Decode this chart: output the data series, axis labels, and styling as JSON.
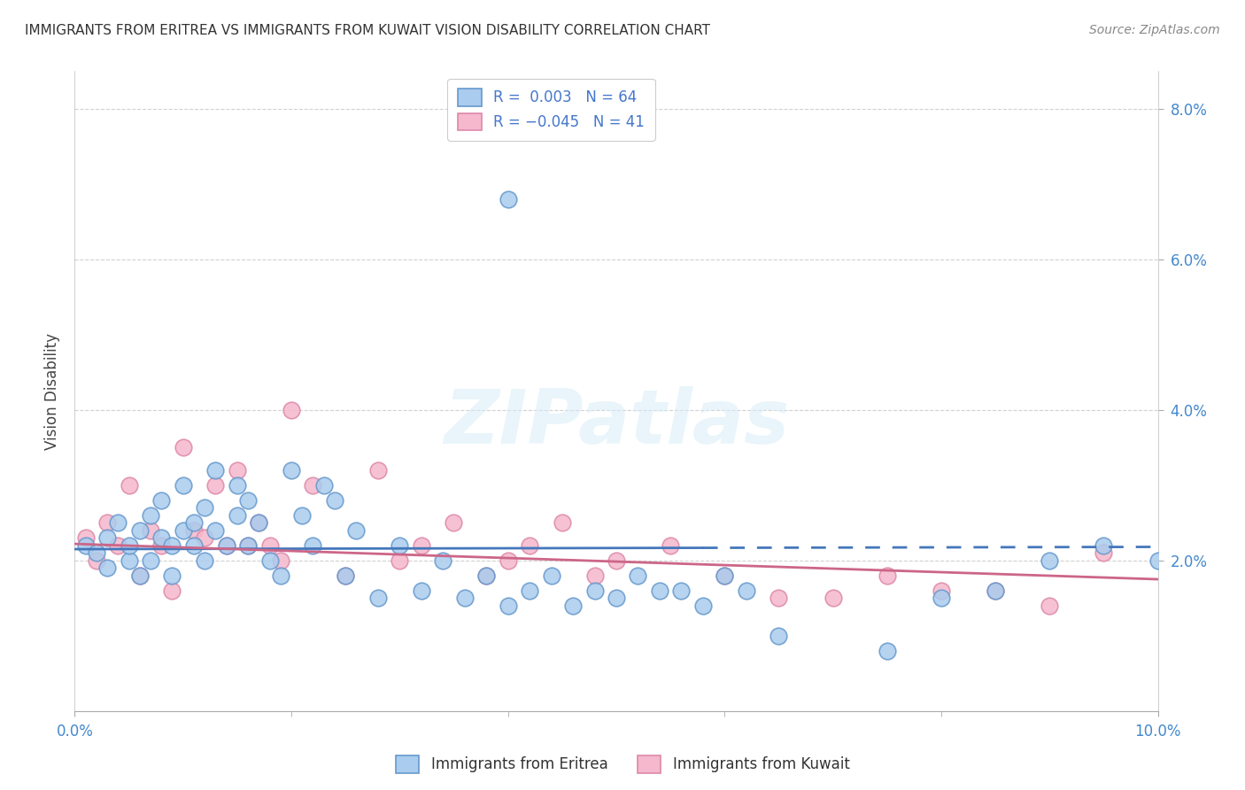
{
  "title": "IMMIGRANTS FROM ERITREA VS IMMIGRANTS FROM KUWAIT VISION DISABILITY CORRELATION CHART",
  "source": "Source: ZipAtlas.com",
  "ylabel": "Vision Disability",
  "xlim": [
    0.0,
    0.1
  ],
  "ylim": [
    0.0,
    0.085
  ],
  "yticks": [
    0.02,
    0.04,
    0.06,
    0.08
  ],
  "ytick_labels": [
    "2.0%",
    "4.0%",
    "6.0%",
    "8.0%"
  ],
  "xticks": [
    0.0,
    0.1
  ],
  "xtick_labels": [
    "0.0%",
    "10.0%"
  ],
  "color_eritrea_fill": "#aaccee",
  "color_eritrea_edge": "#6699cc",
  "color_eritrea_line": "#4477bb",
  "color_kuwait_fill": "#f5b8cc",
  "color_kuwait_edge": "#dd88aa",
  "color_kuwait_line": "#cc6688",
  "watermark_color": "#d8edf8",
  "R_eritrea": 0.003,
  "N_eritrea": 64,
  "R_kuwait": -0.045,
  "N_kuwait": 41,
  "legend_label_eritrea": "Immigrants from Eritrea",
  "legend_label_kuwait": "Immigrants from Kuwait",
  "eritrea_x": [
    0.001,
    0.002,
    0.003,
    0.003,
    0.004,
    0.005,
    0.005,
    0.006,
    0.006,
    0.007,
    0.007,
    0.008,
    0.008,
    0.009,
    0.009,
    0.01,
    0.01,
    0.011,
    0.011,
    0.012,
    0.012,
    0.013,
    0.013,
    0.014,
    0.015,
    0.015,
    0.016,
    0.016,
    0.017,
    0.018,
    0.019,
    0.02,
    0.021,
    0.022,
    0.023,
    0.024,
    0.025,
    0.026,
    0.028,
    0.03,
    0.032,
    0.034,
    0.036,
    0.038,
    0.04,
    0.042,
    0.044,
    0.046,
    0.048,
    0.05,
    0.052,
    0.054,
    0.056,
    0.058,
    0.06,
    0.062,
    0.04,
    0.065,
    0.075,
    0.08,
    0.085,
    0.09,
    0.095,
    0.1
  ],
  "eritrea_y": [
    0.022,
    0.021,
    0.019,
    0.023,
    0.025,
    0.02,
    0.022,
    0.024,
    0.018,
    0.026,
    0.02,
    0.023,
    0.028,
    0.022,
    0.018,
    0.03,
    0.024,
    0.025,
    0.022,
    0.027,
    0.02,
    0.032,
    0.024,
    0.022,
    0.03,
    0.026,
    0.028,
    0.022,
    0.025,
    0.02,
    0.018,
    0.032,
    0.026,
    0.022,
    0.03,
    0.028,
    0.018,
    0.024,
    0.015,
    0.022,
    0.016,
    0.02,
    0.015,
    0.018,
    0.014,
    0.016,
    0.018,
    0.014,
    0.016,
    0.015,
    0.018,
    0.016,
    0.016,
    0.014,
    0.018,
    0.016,
    0.068,
    0.01,
    0.008,
    0.015,
    0.016,
    0.02,
    0.022,
    0.02
  ],
  "kuwait_x": [
    0.001,
    0.002,
    0.003,
    0.004,
    0.005,
    0.006,
    0.007,
    0.008,
    0.009,
    0.01,
    0.011,
    0.012,
    0.013,
    0.014,
    0.015,
    0.016,
    0.017,
    0.018,
    0.019,
    0.02,
    0.022,
    0.025,
    0.028,
    0.03,
    0.032,
    0.035,
    0.038,
    0.04,
    0.042,
    0.045,
    0.048,
    0.05,
    0.055,
    0.06,
    0.065,
    0.07,
    0.075,
    0.08,
    0.085,
    0.09,
    0.095
  ],
  "kuwait_y": [
    0.023,
    0.02,
    0.025,
    0.022,
    0.03,
    0.018,
    0.024,
    0.022,
    0.016,
    0.035,
    0.024,
    0.023,
    0.03,
    0.022,
    0.032,
    0.022,
    0.025,
    0.022,
    0.02,
    0.04,
    0.03,
    0.018,
    0.032,
    0.02,
    0.022,
    0.025,
    0.018,
    0.02,
    0.022,
    0.025,
    0.018,
    0.02,
    0.022,
    0.018,
    0.015,
    0.015,
    0.018,
    0.016,
    0.016,
    0.014,
    0.021
  ]
}
